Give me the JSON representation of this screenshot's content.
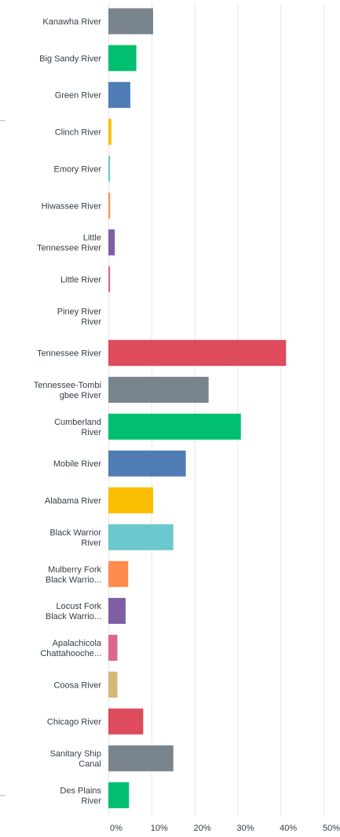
{
  "chart_data": {
    "type": "bar",
    "orientation": "horizontal",
    "categories": [
      [
        "Kanawha River"
      ],
      [
        "Big Sandy River"
      ],
      [
        "Green River"
      ],
      [
        "Clinch River"
      ],
      [
        "Emory River"
      ],
      [
        "Hiwassee River"
      ],
      [
        "Little",
        "Tennessee River"
      ],
      [
        "Little River"
      ],
      [
        "Piney River",
        "River"
      ],
      [
        "Tennessee River"
      ],
      [
        "Tennessee-Tombi",
        "gbee River"
      ],
      [
        "Cumberland",
        "River"
      ],
      [
        "Mobile River"
      ],
      [
        "Alabama River"
      ],
      [
        "Black Warrior",
        "River"
      ],
      [
        "Mulberry Fork",
        "Black Warrio..."
      ],
      [
        "Locust Fork",
        "Black Warrio..."
      ],
      [
        "Apalachicola",
        "Chattahooche..."
      ],
      [
        "Coosa River"
      ],
      [
        "Chicago River"
      ],
      [
        "Sanitary Ship",
        "Canal"
      ],
      [
        "Des Plains",
        "River"
      ]
    ],
    "values": [
      10.4,
      6.5,
      5.1,
      0.7,
      0.4,
      0.4,
      1.5,
      0.4,
      0.0,
      41.3,
      23.3,
      30.8,
      18.0,
      10.4,
      15.1,
      4.6,
      4.0,
      2.1,
      2.1,
      8.1,
      15.1,
      4.8
    ],
    "bar_colors": [
      "#7a848d",
      "#00bf6f",
      "#507cb6",
      "#f9be00",
      "#6bc8cd",
      "#ff8b4f",
      "#7f5fa4",
      "#e0658e",
      "#c8b774",
      "#dd4b5c",
      "#7a848d",
      "#00bf6f",
      "#507cb6",
      "#f9be00",
      "#6bc8cd",
      "#ff8b4f",
      "#7f5fa4",
      "#e0658e",
      "#d5b776",
      "#dd4b5c",
      "#7a848d",
      "#00bf6f"
    ],
    "x_ticks": [
      "0%",
      "10%",
      "20%",
      "30%",
      "40%",
      "50%"
    ],
    "xlim": [
      0,
      50
    ],
    "grid": true,
    "title": "",
    "xlabel": "",
    "ylabel": ""
  }
}
